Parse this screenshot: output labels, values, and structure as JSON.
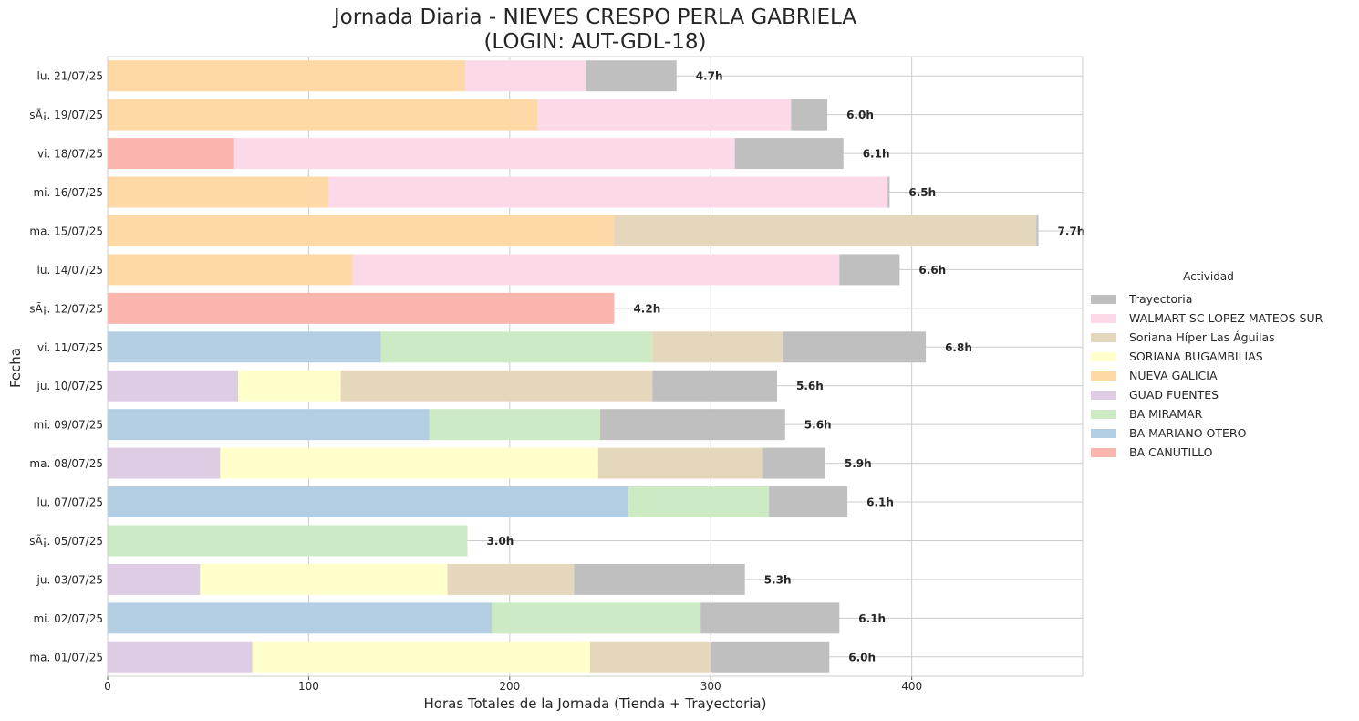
{
  "chart_data": {
    "type": "bar",
    "orientation": "horizontal",
    "stacked": true,
    "title_lines": [
      "Jornada Diaria - NIEVES CRESPO PERLA GABRIELA",
      "(LOGIN: AUT-GDL-18)"
    ],
    "xlabel": "Horas Totales de la Jornada (Tienda + Trayectoria)",
    "ylabel": "Fecha",
    "xlim": [
      0,
      485
    ],
    "xticks": [
      0,
      100,
      200,
      300,
      400
    ],
    "grid": true,
    "legend": {
      "title": "Actividad",
      "position": "right"
    },
    "categories": [
      "lu. 21/07/25",
      "sÃ¡. 19/07/25",
      "vi. 18/07/25",
      "mi. 16/07/25",
      "ma. 15/07/25",
      "lu. 14/07/25",
      "sÃ¡. 12/07/25",
      "vi. 11/07/25",
      "ju. 10/07/25",
      "mi. 09/07/25",
      "ma. 08/07/25",
      "lu. 07/07/25",
      "sÃ¡. 05/07/25",
      "ju. 03/07/25",
      "mi. 02/07/25",
      "ma. 01/07/25"
    ],
    "totals_labels": [
      "4.7h",
      "6.0h",
      "6.1h",
      "6.5h",
      "7.7h",
      "6.6h",
      "4.2h",
      "6.8h",
      "5.6h",
      "5.6h",
      "5.9h",
      "6.1h",
      "3.0h",
      "5.3h",
      "6.1h",
      "6.0h"
    ],
    "stack_order": [
      "BA CANUTILLO",
      "BA MARIANO OTERO",
      "BA MIRAMAR",
      "GUAD FUENTES",
      "NUEVA GALICIA",
      "SORIANA BUGAMBILIAS",
      "Soriana Híper Las Águilas",
      "WALMART SC LOPEZ MATEOS SUR",
      "Trayectoria"
    ],
    "series": [
      {
        "name": "Trayectoria",
        "color": "#bfbfbf",
        "values": [
          45,
          18,
          54,
          1,
          1,
          30,
          0,
          71,
          62,
          92,
          31,
          39,
          0,
          85,
          69,
          59
        ]
      },
      {
        "name": "WALMART SC LOPEZ MATEOS SUR",
        "color": "#fcd9e9",
        "values": [
          60,
          126,
          249,
          278,
          0,
          242,
          0,
          0,
          0,
          0,
          0,
          0,
          0,
          0,
          0,
          0
        ]
      },
      {
        "name": "Soriana Híper Las Águilas",
        "color": "#e5d7bc",
        "values": [
          0,
          0,
          0,
          0,
          210,
          0,
          0,
          65,
          155,
          0,
          82,
          0,
          0,
          63,
          0,
          60
        ]
      },
      {
        "name": "SORIANA BUGAMBILIAS",
        "color": "#ffffcc",
        "values": [
          0,
          0,
          0,
          0,
          0,
          0,
          0,
          0,
          51,
          0,
          188,
          0,
          0,
          123,
          0,
          168
        ]
      },
      {
        "name": "NUEVA GALICIA",
        "color": "#fed9a6",
        "values": [
          178,
          214,
          0,
          110,
          252,
          122,
          0,
          0,
          0,
          0,
          0,
          0,
          0,
          0,
          0,
          0
        ]
      },
      {
        "name": "GUAD FUENTES",
        "color": "#decbe4",
        "values": [
          0,
          0,
          0,
          0,
          0,
          0,
          0,
          0,
          65,
          0,
          56,
          0,
          0,
          46,
          0,
          72
        ]
      },
      {
        "name": "BA MIRAMAR",
        "color": "#ccebc5",
        "values": [
          0,
          0,
          0,
          0,
          0,
          0,
          0,
          135,
          0,
          85,
          0,
          70,
          179,
          0,
          104,
          0
        ]
      },
      {
        "name": "BA MARIANO OTERO",
        "color": "#b3cde3",
        "values": [
          0,
          0,
          0,
          0,
          0,
          0,
          0,
          136,
          0,
          160,
          0,
          259,
          0,
          0,
          191,
          0
        ]
      },
      {
        "name": "BA CANUTILLO",
        "color": "#fbb4ae",
        "values": [
          0,
          0,
          63,
          0,
          0,
          0,
          252,
          0,
          0,
          0,
          0,
          0,
          0,
          0,
          0,
          0
        ]
      }
    ]
  }
}
